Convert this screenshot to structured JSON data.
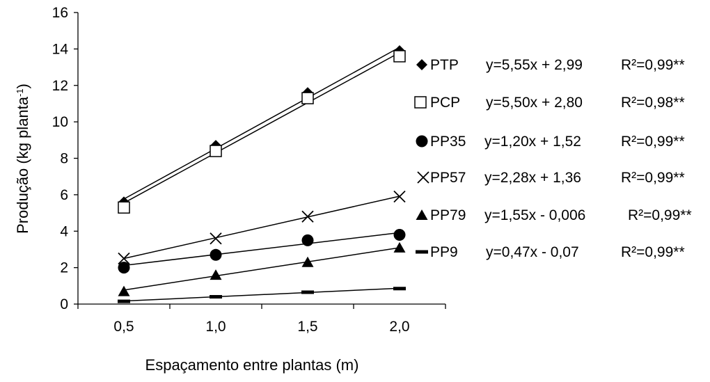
{
  "chart_data": {
    "type": "scatter",
    "xlabel": "Espaçamento entre plantas (m)",
    "ylabel_main": "Produção (kg  planta",
    "ylabel_sup": "-1",
    "ylabel_close": ")",
    "x_ticks": [
      "0,5",
      "1,0",
      "1,5",
      "2,0"
    ],
    "y_ticks": [
      "0",
      "2",
      "4",
      "6",
      "8",
      "10",
      "12",
      "14",
      "16"
    ],
    "xlim": [
      0.25,
      2.25
    ],
    "ylim": [
      0,
      16
    ],
    "x": [
      0.5,
      1.0,
      1.5,
      2.0
    ],
    "series": [
      {
        "name": "PTP",
        "marker": "diamond",
        "values": [
          5.6,
          8.7,
          11.6,
          13.9
        ],
        "fit": {
          "slope": 5.55,
          "intercept": 2.99
        },
        "equation": "y=5,55x + 2,99",
        "r2": "R²=0,99**"
      },
      {
        "name": "PCP",
        "marker": "square",
        "values": [
          5.3,
          8.4,
          11.3,
          13.6
        ],
        "fit": {
          "slope": 5.5,
          "intercept": 2.8
        },
        "equation": "y=5,50x + 2,80",
        "r2": "R²=0,98**"
      },
      {
        "name": "PP35",
        "marker": "circle",
        "values": [
          2.0,
          2.7,
          3.5,
          3.8
        ],
        "fit": {
          "slope": 1.2,
          "intercept": 1.52
        },
        "equation": "y=1,20x + 1,52",
        "r2": "R²=0,99**"
      },
      {
        "name": "PP57",
        "marker": "cross",
        "values": [
          2.5,
          3.6,
          4.8,
          5.9
        ],
        "fit": {
          "slope": 2.28,
          "intercept": 1.36
        },
        "equation": "y=2,28x + 1,36",
        "r2": "R²=0,99**"
      },
      {
        "name": "PP79",
        "marker": "triangle",
        "values": [
          0.7,
          1.6,
          2.3,
          3.1
        ],
        "fit": {
          "slope": 1.55,
          "intercept": -0.006
        },
        "equation": "y=1,55x - 0,006",
        "r2": "R²=0,99**"
      },
      {
        "name": "PP9",
        "marker": "dash",
        "values": [
          0.15,
          0.4,
          0.65,
          0.85
        ],
        "fit": {
          "slope": 0.47,
          "intercept": -0.07
        },
        "equation": "y=0,47x - 0,07",
        "r2": "R²=0,99**"
      }
    ],
    "legend": "right",
    "grid": false
  }
}
